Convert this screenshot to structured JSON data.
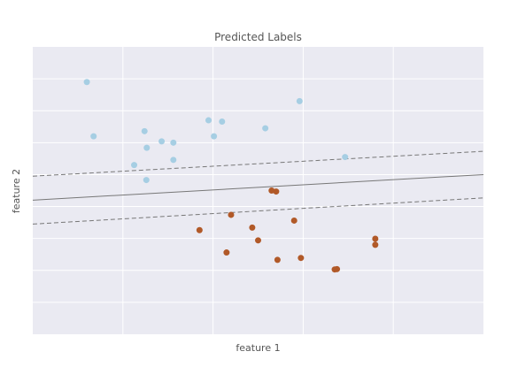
{
  "chart_data": {
    "type": "scatter",
    "title": "Predicted Labels",
    "xlabel": "feature 1",
    "ylabel": "feature 2",
    "xlim": [
      0,
      10
    ],
    "ylim": [
      0,
      9
    ],
    "grid": true,
    "show_tick_labels": false,
    "colors": {
      "background": "#eaeaf2",
      "grid": "#ffffff",
      "class_0": "#a6cee3",
      "class_1": "#b15928",
      "boundary": "#777777"
    },
    "series": [
      {
        "class": 0,
        "points": [
          [
            1.2,
            7.9
          ],
          [
            1.35,
            6.2
          ],
          [
            2.48,
            6.36
          ],
          [
            2.53,
            5.84
          ],
          [
            2.86,
            6.04
          ],
          [
            3.12,
            6.0
          ],
          [
            2.25,
            5.3
          ],
          [
            3.12,
            5.46
          ],
          [
            2.52,
            4.83
          ],
          [
            3.9,
            6.7
          ],
          [
            4.02,
            6.2
          ],
          [
            4.2,
            6.66
          ],
          [
            5.16,
            6.45
          ],
          [
            5.92,
            7.3
          ],
          [
            6.93,
            5.55
          ]
        ]
      },
      {
        "class": 1,
        "points": [
          [
            5.3,
            4.5
          ],
          [
            5.4,
            4.47
          ],
          [
            4.4,
            3.74
          ],
          [
            5.8,
            3.56
          ],
          [
            3.7,
            3.26
          ],
          [
            4.87,
            3.34
          ],
          [
            5.0,
            2.94
          ],
          [
            7.6,
            2.99
          ],
          [
            7.6,
            2.8
          ],
          [
            4.3,
            2.56
          ],
          [
            5.43,
            2.33
          ],
          [
            5.95,
            2.39
          ],
          [
            6.7,
            2.03
          ],
          [
            6.75,
            2.04
          ]
        ]
      }
    ],
    "decision_boundary": {
      "solid": [
        [
          0,
          4.2
        ],
        [
          10,
          5.0
        ]
      ],
      "margins": [
        [
          [
            0,
            4.95
          ],
          [
            10,
            5.73
          ]
        ],
        [
          [
            0,
            3.45
          ],
          [
            10,
            4.27
          ]
        ]
      ]
    }
  }
}
